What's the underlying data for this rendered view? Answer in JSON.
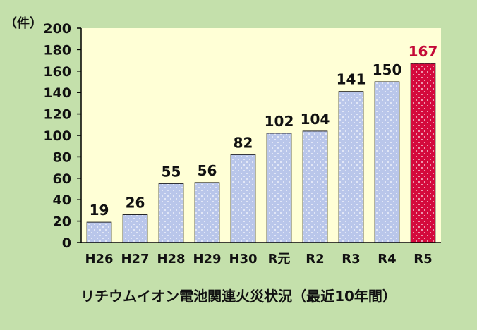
{
  "chart_data": {
    "type": "bar",
    "unit_label": "（件）",
    "categories": [
      "H26",
      "H27",
      "H28",
      "H29",
      "H30",
      "R元",
      "R2",
      "R3",
      "R4",
      "R5"
    ],
    "values": [
      19,
      26,
      55,
      56,
      82,
      102,
      104,
      141,
      150,
      167
    ],
    "ylim": [
      0,
      200
    ],
    "yticks": [
      0,
      20,
      40,
      60,
      80,
      100,
      120,
      140,
      160,
      180,
      200
    ],
    "grid": false,
    "highlight_index": 9,
    "colors": {
      "bar": "#b9c6ea",
      "highlight_bar": "#d40a3c",
      "highlight_label": "#c40a38",
      "plot_bg": "#ffffd6",
      "page_bg": "#c4e0ab"
    },
    "caption": "リチウムイオン電池関連火災状況（最近10年間）"
  }
}
